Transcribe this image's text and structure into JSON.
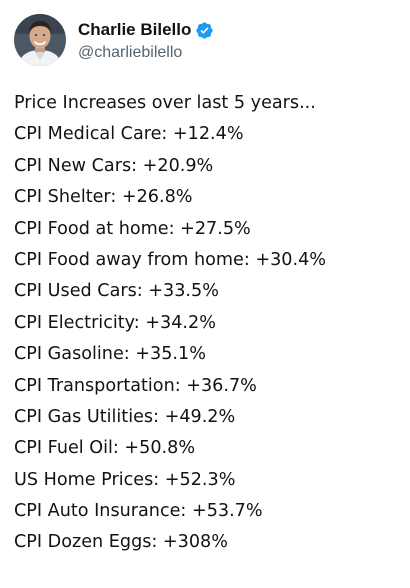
{
  "author": {
    "display_name": "Charlie Bilello",
    "handle": "@charliebilello",
    "verified_badge_icon": "verified-badge-icon",
    "verified_color": "#1d9bf0"
  },
  "tweet": {
    "lines": [
      "Price Increases over last 5 years...",
      "CPI Medical Care: +12.4%",
      "CPI New Cars: +20.9%",
      "CPI Shelter: +26.8%",
      "CPI Food at home: +27.5%",
      "CPI Food away from home: +30.4%",
      "CPI Used Cars: +33.5%",
      "CPI Electricity: +34.2%",
      "CPI Gasoline: +35.1%",
      "CPI Transportation: +36.7%",
      "CPI Gas Utilities: +49.2%",
      "CPI Fuel Oil: +50.8%",
      "US Home Prices: +52.3%",
      "CPI Auto Insurance: +53.7%",
      "CPI Dozen Eggs: +308%"
    ]
  }
}
